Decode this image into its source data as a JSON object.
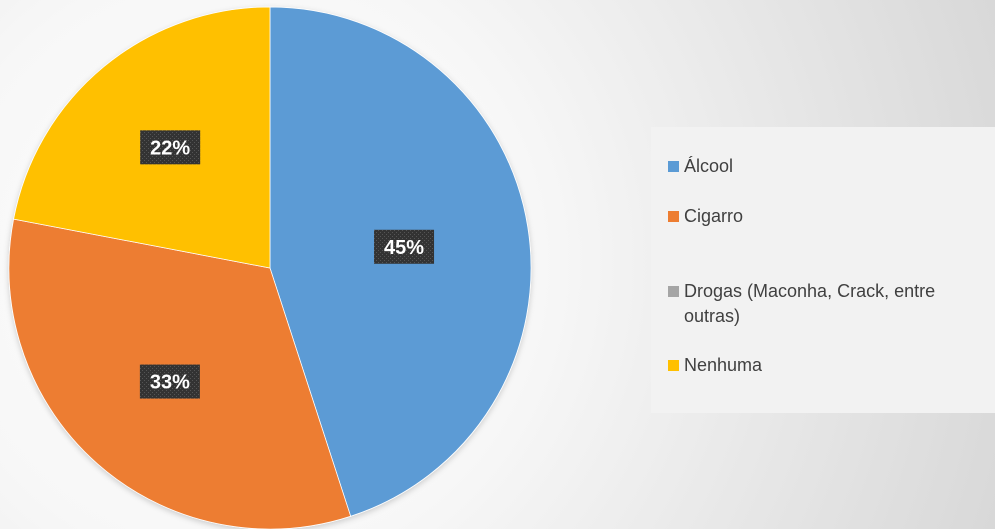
{
  "chart_data": {
    "type": "pie",
    "title": "",
    "slices": [
      {
        "label": "Álcool",
        "value": 45,
        "value_label": "45%",
        "color": "#5b9bd5"
      },
      {
        "label": "Cigarro",
        "value": 33,
        "value_label": "33%",
        "color": "#ed7d31"
      },
      {
        "label": "Drogas (Maconha, Crack, entre outras)",
        "value": 0,
        "value_label": "",
        "color": "#a5a5a5"
      },
      {
        "label": "Nenhuma",
        "value": 22,
        "value_label": "22%",
        "color": "#ffc000"
      }
    ],
    "legend_position": "right",
    "start_angle": "top, clockwise"
  }
}
